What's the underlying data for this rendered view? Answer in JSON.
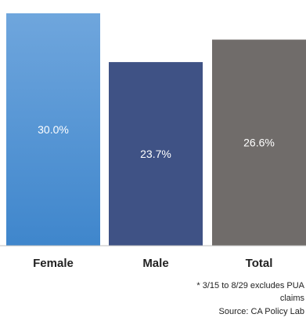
{
  "chart_data": {
    "type": "bar",
    "categories": [
      "Female",
      "Male",
      "Total"
    ],
    "values": [
      30.0,
      23.7,
      26.6
    ],
    "value_labels": [
      "30.0%",
      "23.7%",
      "26.6%"
    ],
    "colors": [
      "#5b9bd5",
      "#3f5285",
      "#706c6a"
    ],
    "title": "",
    "xlabel": "",
    "ylabel": "",
    "ylim": [
      0,
      30.6
    ],
    "grid": false,
    "legend": "none"
  },
  "notes": {
    "line1": "* 3/15 to 8/29 excludes PUA",
    "line2": "claims",
    "source": "Source: CA Policy Lab"
  }
}
